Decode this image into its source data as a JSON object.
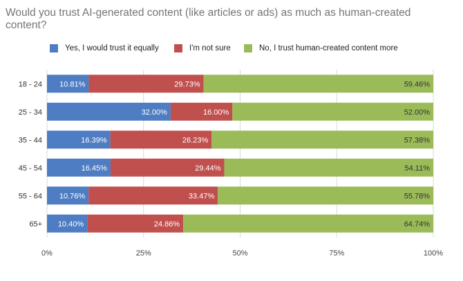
{
  "chart_data": {
    "type": "bar",
    "orientation": "horizontal",
    "stacked": "percent",
    "title": "Would you trust AI-generated content (like articles or ads) as much as human-created content?",
    "categories": [
      "18 - 24",
      "25 - 34",
      "35 - 44",
      "45 - 54",
      "55 - 64",
      "65+"
    ],
    "series": [
      {
        "name": "Yes, I would trust it equally",
        "color": "#4f7dc3",
        "values": [
          10.81,
          32.0,
          16.39,
          16.45,
          10.76,
          10.4
        ],
        "labels": [
          "10.81%",
          "32.00%",
          "16.39%",
          "16.45%",
          "10.76%",
          "10.40%"
        ]
      },
      {
        "name": "I'm not sure",
        "color": "#c0504d",
        "values": [
          29.73,
          16.0,
          26.23,
          29.44,
          33.47,
          24.86
        ],
        "labels": [
          "29.73%",
          "16.00%",
          "26.23%",
          "29.44%",
          "33.47%",
          "24.86%"
        ]
      },
      {
        "name": "No, I trust human-created content more",
        "color": "#9bbb59",
        "values": [
          59.46,
          52.0,
          57.38,
          54.11,
          55.78,
          64.74
        ],
        "labels": [
          "59.46%",
          "52.00%",
          "57.38%",
          "54.11%",
          "55.78%",
          "64.74%"
        ]
      }
    ],
    "xlim": [
      0,
      100
    ],
    "xticks": [
      "0%",
      "25%",
      "50%",
      "75%",
      "100%"
    ],
    "xlabel": "",
    "ylabel": "",
    "grid": true,
    "legend_position": "top"
  }
}
